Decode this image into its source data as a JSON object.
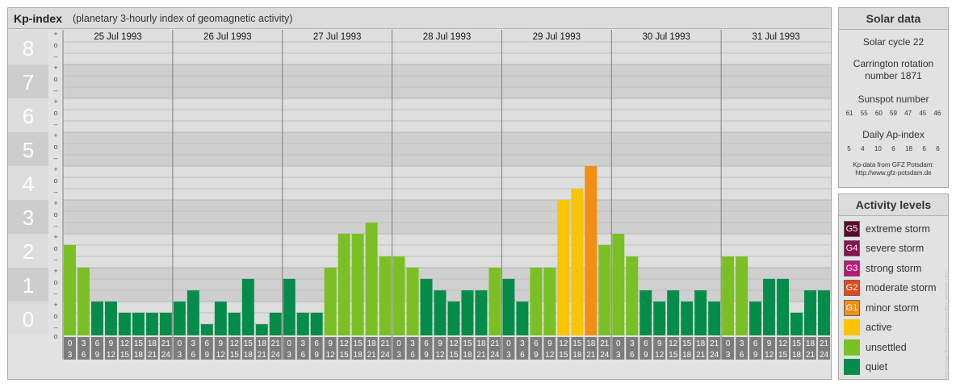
{
  "header": {
    "title": "Kp-index",
    "subtitle": "(planetary 3-hourly index of geomagnetic activity)"
  },
  "solar": {
    "title": "Solar data",
    "cycle": "Solar cycle 22",
    "carrington_line1": "Carrington rotation",
    "carrington_line2": "number 1871",
    "sunspot_label": "Sunspot number",
    "sunspot_values": [
      "61",
      "55",
      "60",
      "59",
      "47",
      "45",
      "46"
    ],
    "ap_label": "Daily Ap-index",
    "ap_values": [
      "5",
      "4",
      "10",
      "6",
      "18",
      "6",
      "6"
    ],
    "source_line1": "Kp-data from GFZ Potsdam:",
    "source_line2": "http://www.gfz-potsdam.de"
  },
  "activity": {
    "title": "Activity levels",
    "items": [
      {
        "badge": "G5",
        "label": "extreme storm",
        "color": "#5a0a2e"
      },
      {
        "badge": "G4",
        "label": "severe storm",
        "color": "#8a1152"
      },
      {
        "badge": "G3",
        "label": "strong storm",
        "color": "#b91879"
      },
      {
        "badge": "G2",
        "label": "moderate storm",
        "color": "#e4491b"
      },
      {
        "badge": "G1",
        "label": "minor storm",
        "color": "#f08f12"
      },
      {
        "badge": "",
        "label": "active",
        "color": "#f9c404"
      },
      {
        "badge": "",
        "label": "unsettled",
        "color": "#7ac025"
      },
      {
        "badge": "",
        "label": "quiet",
        "color": "#058c4a"
      }
    ]
  },
  "watermark": "http://www.ftuereri.nl/auroral/kp_archive.php",
  "chart_data": {
    "type": "bar",
    "title": "Kp-index",
    "ylim": [
      0,
      9
    ],
    "y_ticks": [
      "0",
      "1",
      "2",
      "3",
      "4",
      "5",
      "6",
      "7",
      "8",
      "9"
    ],
    "sub_ticks": [
      "+",
      "o",
      "–"
    ],
    "days": [
      "25 Jul 1993",
      "26 Jul 1993",
      "27 Jul 1993",
      "28 Jul 1993",
      "29 Jul 1993",
      "30 Jul 1993",
      "31 Jul 1993"
    ],
    "hour_starts": [
      "0",
      "3",
      "6",
      "9",
      "12",
      "15",
      "18",
      "21"
    ],
    "hour_ends": [
      "3",
      "6",
      "9",
      "12",
      "15",
      "18",
      "21",
      "24"
    ],
    "colors": {
      "quiet": "#058c4a",
      "unsettled": "#7ac025",
      "active": "#f9c404",
      "minor_storm": "#f08f12"
    },
    "values": [
      [
        2.67,
        2.0,
        1.0,
        1.0,
        0.67,
        0.67,
        0.67,
        0.67
      ],
      [
        1.0,
        1.33,
        0.33,
        1.0,
        0.67,
        1.67,
        0.33,
        0.67
      ],
      [
        1.67,
        0.67,
        0.67,
        2.0,
        3.0,
        3.0,
        3.33,
        2.33
      ],
      [
        2.33,
        2.0,
        1.67,
        1.33,
        1.0,
        1.33,
        1.33,
        2.0
      ],
      [
        1.67,
        1.0,
        2.0,
        2.0,
        4.0,
        4.33,
        5.0,
        2.67
      ],
      [
        3.0,
        2.33,
        1.33,
        1.0,
        1.33,
        1.0,
        1.33,
        1.0
      ],
      [
        2.33,
        2.33,
        1.0,
        1.67,
        1.67,
        0.67,
        1.33,
        1.33
      ]
    ]
  }
}
